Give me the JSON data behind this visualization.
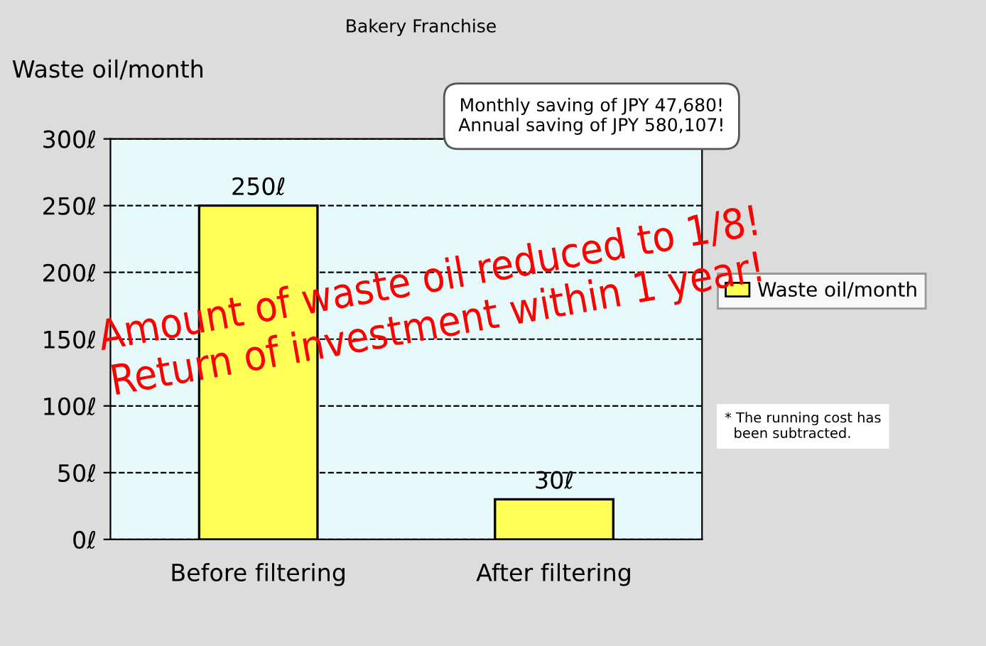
{
  "chart_data": {
    "type": "bar",
    "title": "Bakery Franchise",
    "ylabel": "Waste oil/month",
    "categories": [
      "Before filtering",
      "After filtering"
    ],
    "series": [
      {
        "name": "Waste oil/month",
        "color": "#ffff55",
        "values": [
          250,
          30
        ],
        "value_labels": [
          "250ℓ",
          "30ℓ"
        ]
      }
    ],
    "ylim": [
      0,
      300
    ],
    "yticks": [
      {
        "value": 0,
        "label": "0ℓ"
      },
      {
        "value": 50,
        "label": "50ℓ"
      },
      {
        "value": 100,
        "label": "100ℓ"
      },
      {
        "value": 150,
        "label": "150ℓ"
      },
      {
        "value": 200,
        "label": "200ℓ"
      },
      {
        "value": 250,
        "label": "250ℓ"
      },
      {
        "value": 300,
        "label": "300ℓ"
      }
    ],
    "grid": "y",
    "legend": "right",
    "annotations": [
      "Monthly saving of JPY 47,680!\nAnnual saving of JPY 580,107!",
      "Amount of waste oil reduced to 1/8!\nReturn of investment within 1 year!",
      "* The running cost has\n  been subtracted."
    ]
  }
}
